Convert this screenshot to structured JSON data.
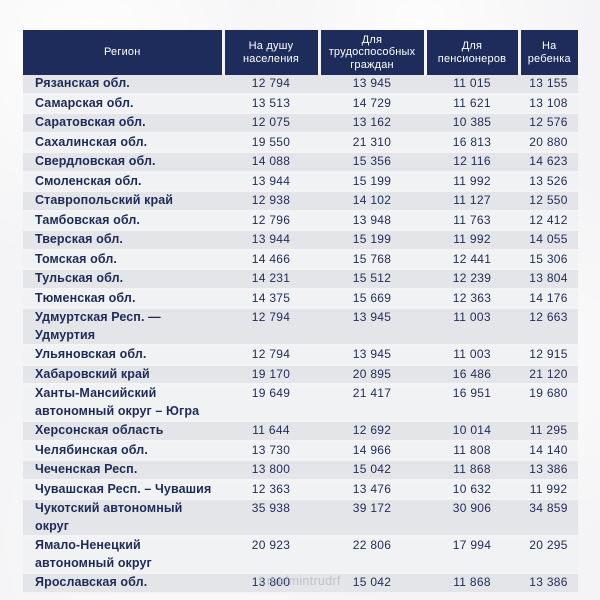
{
  "colors": {
    "page_background": "#f4f4f6",
    "header_background": "#1e2c5c",
    "header_text": "#ffffff",
    "row_stripe": "#e4e5e9",
    "row_plain": "#f1f2f4",
    "body_text": "#1e2b57",
    "footer_text": "#bfc2ca"
  },
  "footer": {
    "handle": "t.me/mintrudrf"
  },
  "chart_data": {
    "type": "table",
    "columns": [
      "Регион",
      "На душу населения",
      "Для трудоспособных граждан",
      "Для пенсионеров",
      "На ребенка"
    ],
    "rows": [
      [
        "Рязанская обл.",
        "12 794",
        "13 945",
        "11 015",
        "13 155"
      ],
      [
        "Самарская обл.",
        "13 513",
        "14 729",
        "11 621",
        "13 108"
      ],
      [
        "Саратовская обл.",
        "12 075",
        "13 162",
        "10 385",
        "12 576"
      ],
      [
        "Сахалинская обл.",
        "19 550",
        "21 310",
        "16 813",
        "20 880"
      ],
      [
        "Свердловская обл.",
        "14 088",
        "15 356",
        "12 116",
        "14 623"
      ],
      [
        "Смоленская обл.",
        "13 944",
        "15 199",
        "11 992",
        "13 526"
      ],
      [
        "Ставропольский край",
        "12 938",
        "14 102",
        "11 127",
        "12 550"
      ],
      [
        "Тамбовская обл.",
        "12 796",
        "13 948",
        "11 763",
        "12 412"
      ],
      [
        "Тверская обл.",
        "13 944",
        "15 199",
        "11 992",
        "14 055"
      ],
      [
        "Томская обл.",
        "14 466",
        "15 768",
        "12 441",
        "15 306"
      ],
      [
        "Тульская обл.",
        "14 231",
        "15 512",
        "12 239",
        "13 804"
      ],
      [
        "Тюменская обл.",
        "14 375",
        "15 669",
        "12 363",
        "14 176"
      ],
      [
        "Удмуртская Респ. — Удмуртия",
        "12 794",
        "13 945",
        "11 003",
        "12 663"
      ],
      [
        "Ульяновская обл.",
        "12 794",
        "13 945",
        "11 003",
        "12 915"
      ],
      [
        "Хабаровский край",
        "19 170",
        "20 895",
        "16 486",
        "21 120"
      ],
      [
        "Ханты-Мансийский автономный округ – Югра",
        "19 649",
        "21 417",
        "16 951",
        "19 680"
      ],
      [
        "Херсонская область",
        "11 644",
        "12 692",
        "10 014",
        "11 295"
      ],
      [
        "Челябинская обл.",
        "13 730",
        "14 966",
        "11 808",
        "14 140"
      ],
      [
        "Чеченская Респ.",
        "13 800",
        "15 042",
        "11 868",
        "13 386"
      ],
      [
        "Чувашская Респ. – Чувашия",
        "12 363",
        "13 476",
        "10 632",
        "11 992"
      ],
      [
        "Чукотский автономный округ",
        "35 938",
        "39 172",
        "30 906",
        "34 859"
      ],
      [
        "Ямало-Ненецкий автономный округ",
        "20 923",
        "22 806",
        "17 994",
        "20 295"
      ],
      [
        "Ярославская обл.",
        "13 800",
        "15 042",
        "11 868",
        "13 386"
      ]
    ]
  }
}
